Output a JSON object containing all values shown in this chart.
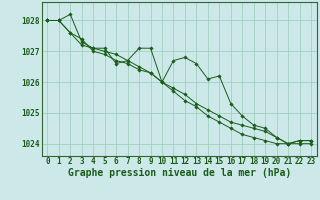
{
  "title": "Graphe pression niveau de la mer (hPa)",
  "background_color": "#cce8e8",
  "grid_color": "#99ccbb",
  "line_color": "#1a5c1a",
  "marker_color": "#1a5c1a",
  "xlim": [
    -0.5,
    23.5
  ],
  "ylim": [
    1023.6,
    1028.6
  ],
  "yticks": [
    1024,
    1025,
    1026,
    1027,
    1028
  ],
  "xticks": [
    0,
    1,
    2,
    3,
    4,
    5,
    6,
    7,
    8,
    9,
    10,
    11,
    12,
    13,
    14,
    15,
    16,
    17,
    18,
    19,
    20,
    21,
    22,
    23
  ],
  "series": [
    [
      1028.0,
      1028.0,
      1028.2,
      1027.3,
      1027.1,
      1027.1,
      1026.6,
      1026.7,
      1027.1,
      1027.1,
      1026.0,
      1026.7,
      1026.8,
      1026.6,
      1026.1,
      1026.2,
      1025.3,
      1024.9,
      1024.6,
      1024.5,
      1024.2,
      1024.0,
      1024.1,
      1024.1
    ],
    [
      1028.0,
      1028.0,
      1027.6,
      1027.2,
      1027.1,
      1027.0,
      1026.9,
      1026.7,
      1026.5,
      1026.3,
      1026.0,
      1025.7,
      1025.4,
      1025.2,
      1024.9,
      1024.7,
      1024.5,
      1024.3,
      1024.2,
      1024.1,
      1024.0,
      1024.0,
      1024.0,
      1024.0
    ],
    [
      1028.0,
      1028.0,
      1027.6,
      1027.4,
      1027.0,
      1026.9,
      1026.7,
      1026.6,
      1026.4,
      1026.3,
      1026.0,
      1025.8,
      1025.6,
      1025.3,
      1025.1,
      1024.9,
      1024.7,
      1024.6,
      1024.5,
      1024.4,
      1024.2,
      1024.0,
      1024.1,
      1024.1
    ]
  ],
  "title_fontsize": 7,
  "tick_fontsize": 5.5,
  "title_color": "#1a5c1a",
  "tick_color": "#1a5c1a",
  "axis_color": "#1a5c1a",
  "spine_color": "#336633"
}
